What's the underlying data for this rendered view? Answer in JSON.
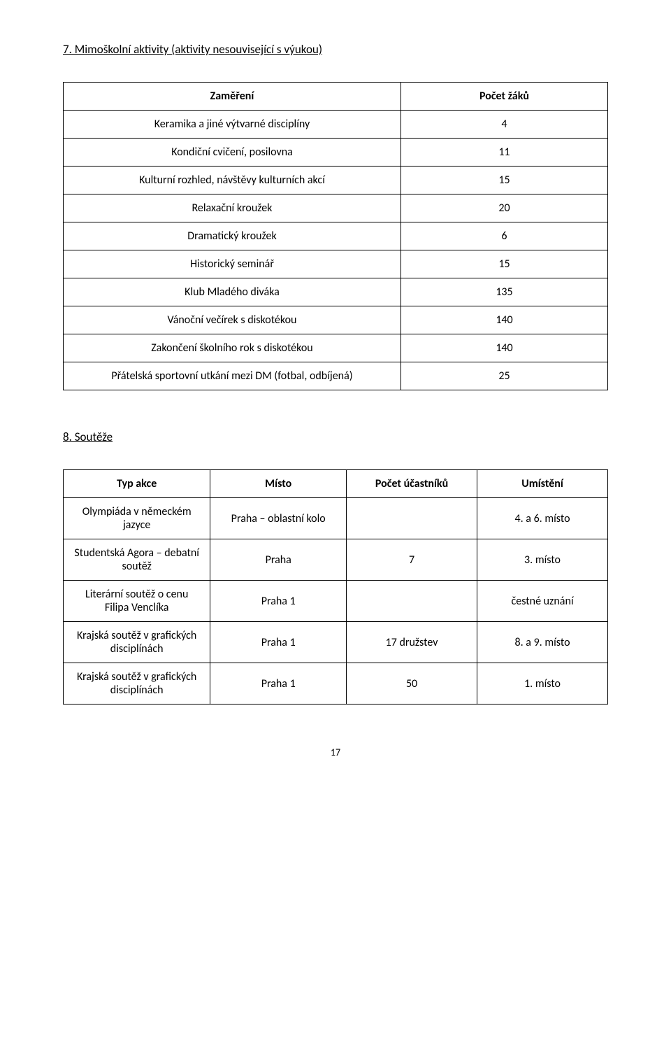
{
  "section1": {
    "heading": "7.  Mimoškolní aktivity (aktivity nesouvisející s výukou)",
    "headers": [
      "Zaměření",
      "Počet žáků"
    ],
    "rows": [
      {
        "label": "Keramika a jiné výtvarné disciplíny",
        "value": "4"
      },
      {
        "label": "Kondiční cvičení, posilovna",
        "value": "11"
      },
      {
        "label": "Kulturní rozhled, návštěvy kulturních akcí",
        "value": "15"
      },
      {
        "label": "Relaxační kroužek",
        "value": "20"
      },
      {
        "label": "Dramatický kroužek",
        "value": "6"
      },
      {
        "label": "Historický seminář",
        "value": "15"
      },
      {
        "label": "Klub Mladého diváka",
        "value": "135"
      },
      {
        "label": "Vánoční večírek s diskotékou",
        "value": "140"
      },
      {
        "label": "Zakončení školního rok s diskotékou",
        "value": "140"
      },
      {
        "label": "Přátelská sportovní utkání mezi DM (fotbal, odbíjená)",
        "value": "25"
      }
    ]
  },
  "section2": {
    "heading": "8. Soutěže",
    "headers": [
      "Typ akce",
      "Místo",
      "Počet účastníků",
      "Umístění"
    ],
    "rows": [
      {
        "c1": "Olympiáda v německém jazyce",
        "c2": "Praha – oblastní kolo",
        "c3": "",
        "c4": "4. a 6. místo"
      },
      {
        "c1": "Studentská Agora – debatní soutěž",
        "c2": "Praha",
        "c3": "7",
        "c4": "3. místo"
      },
      {
        "c1": "Literární soutěž o cenu Filipa Venclíka",
        "c2": "Praha 1",
        "c3": "",
        "c4": "čestné uznání"
      },
      {
        "c1": "Krajská soutěž v grafických disciplínách",
        "c2": "Praha 1",
        "c3": "17 družstev",
        "c4": "8. a 9. místo"
      },
      {
        "c1": "Krajská soutěž v grafických disciplínách",
        "c2": "Praha 1",
        "c3": "50",
        "c4": "1. místo"
      }
    ]
  },
  "pageNumber": "17"
}
